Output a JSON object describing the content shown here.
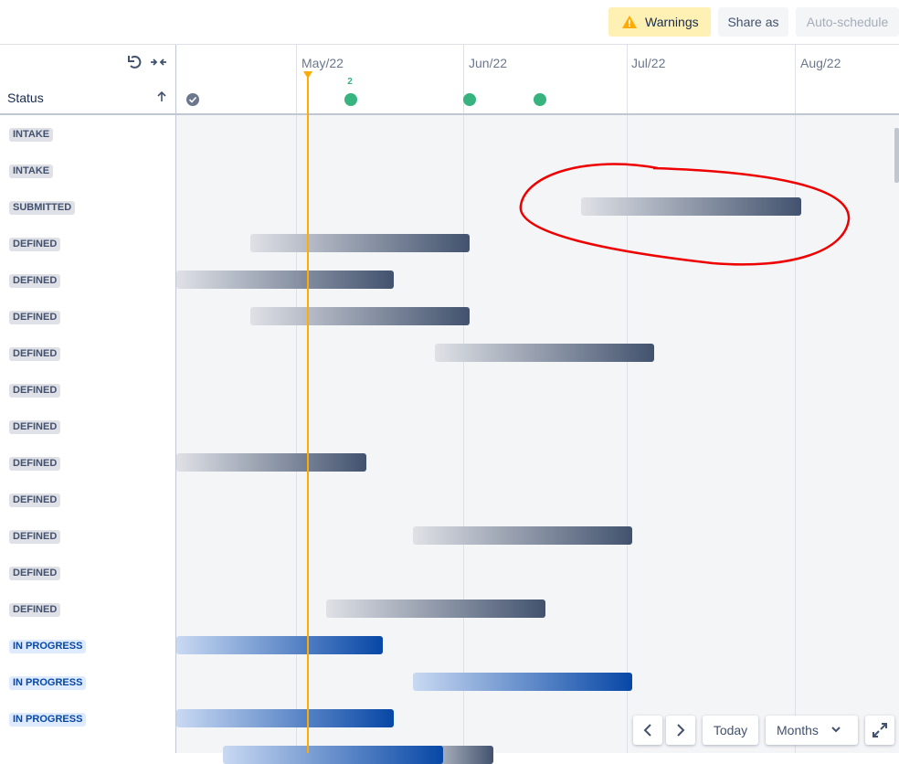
{
  "toolbar": {
    "warnings": "Warnings",
    "share": "Share as",
    "auto_schedule": "Auto-schedule"
  },
  "timeline": {
    "months": [
      "May/22",
      "Jun/22",
      "Jul/22",
      "Aug/22"
    ],
    "milestone_count": 2
  },
  "columns": {
    "status": "Status"
  },
  "rows": [
    "INTAKE",
    "INTAKE",
    "SUBMITTED",
    "DEFINED",
    "DEFINED",
    "DEFINED",
    "DEFINED",
    "DEFINED",
    "DEFINED",
    "DEFINED",
    "DEFINED",
    "DEFINED",
    "DEFINED",
    "DEFINED",
    "IN PROGRESS",
    "IN PROGRESS",
    "IN PROGRESS"
  ],
  "controls": {
    "today": "Today",
    "months": "Months"
  }
}
